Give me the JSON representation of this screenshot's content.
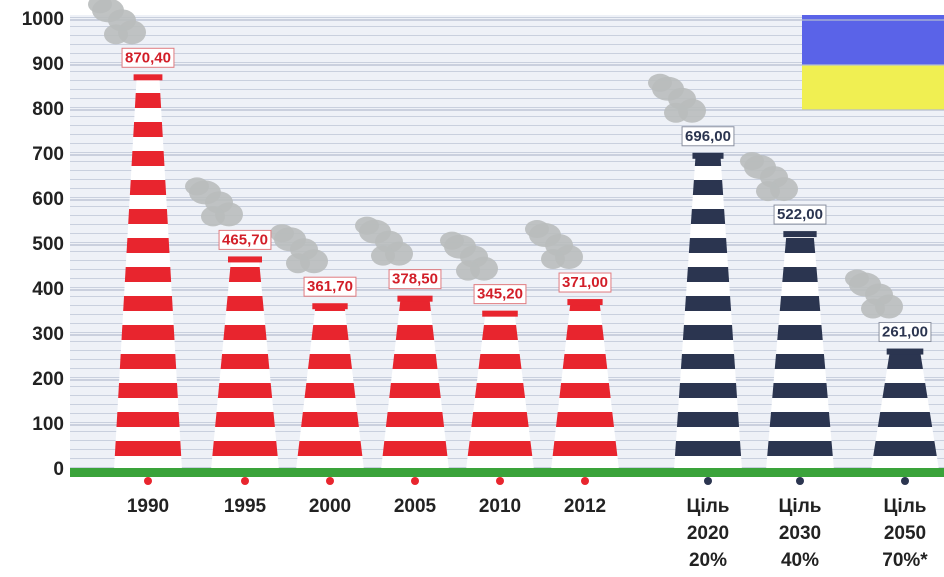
{
  "chart_data": {
    "type": "chimney",
    "categories": [
      "1990",
      "1995",
      "2000",
      "2005",
      "2010",
      "2012",
      "Ціль 2020 20%",
      "Ціль 2030 40%",
      "Ціль 2050 70%*"
    ],
    "values": [
      870.4,
      465.7,
      361.7,
      378.5,
      345.2,
      371.0,
      696.0,
      522.0,
      261.0
    ],
    "value_labels": [
      "870,40",
      "465,70",
      "361,70",
      "378,50",
      "345,20",
      "371,00",
      "696,00",
      "522,00",
      "261,00"
    ],
    "colors": [
      "#e8252e",
      "#e8252e",
      "#e8252e",
      "#e8252e",
      "#e8252e",
      "#e8252e",
      "#2b3550",
      "#2b3550",
      "#2b3550"
    ],
    "ylim": [
      0,
      1000
    ],
    "yticks": [
      0,
      100,
      200,
      300,
      400,
      500,
      600,
      700,
      800,
      900,
      1000
    ],
    "grid": true
  }
}
